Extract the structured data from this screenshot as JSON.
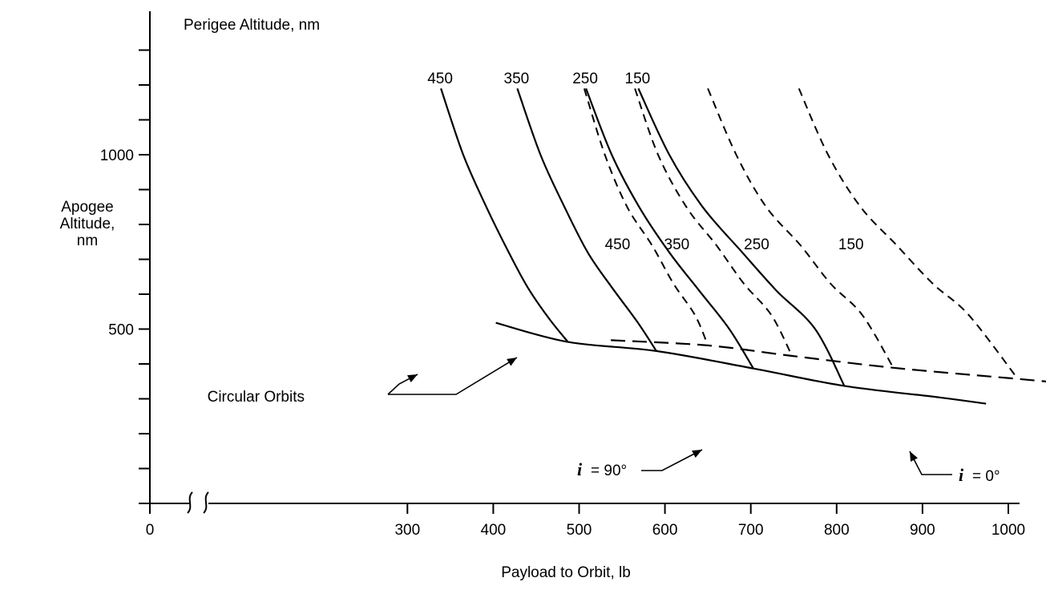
{
  "chart_data": {
    "type": "line",
    "title": "",
    "xlabel": "Payload to Orbit, lb",
    "ylabel": "Apogee Altitude, nm",
    "ylabel_lines": [
      "Apogee",
      "Altitude,",
      "nm"
    ],
    "xlim": [
      0,
      1000
    ],
    "ylim": [
      0,
      1200
    ],
    "x_axis_break_between": [
      0,
      300
    ],
    "x_ticks": [
      0,
      300,
      400,
      500,
      600,
      700,
      800,
      900,
      1000
    ],
    "x_tick_labels": [
      "0",
      "300",
      "400",
      "500",
      "600",
      "700",
      "800",
      "900",
      "1000"
    ],
    "y_ticks": [
      100,
      200,
      300,
      400,
      500,
      600,
      700,
      800,
      900,
      1000,
      1100,
      1200,
      1300
    ],
    "y_tick_labels": [
      {
        "value": 500,
        "label": "500"
      },
      {
        "value": 1000,
        "label": "1000"
      }
    ],
    "grid": false,
    "perigee_header": "Perigee Altitude, nm",
    "series": [
      {
        "name": "450",
        "group": "i = 90°",
        "style": "solid",
        "label_pos": "top",
        "points": [
          [
            339,
            1190
          ],
          [
            365,
            1000
          ],
          [
            392,
            850
          ],
          [
            418,
            720
          ],
          [
            440,
            620
          ],
          [
            465,
            530
          ],
          [
            487,
            463
          ]
        ]
      },
      {
        "name": "350",
        "group": "i = 90°",
        "style": "solid",
        "label_pos": "top",
        "points": [
          [
            428,
            1190
          ],
          [
            455,
            1000
          ],
          [
            483,
            850
          ],
          [
            510,
            720
          ],
          [
            538,
            620
          ],
          [
            568,
            520
          ],
          [
            590,
            437
          ]
        ]
      },
      {
        "name": "250",
        "group": "i = 90°",
        "style": "solid",
        "label_pos": "top",
        "points": [
          [
            508,
            1190
          ],
          [
            538,
            1000
          ],
          [
            570,
            850
          ],
          [
            605,
            720
          ],
          [
            640,
            610
          ],
          [
            675,
            500
          ],
          [
            703,
            387
          ]
        ]
      },
      {
        "name": "150",
        "group": "i = 90°",
        "style": "solid",
        "label_pos": "top",
        "points": [
          [
            569,
            1190
          ],
          [
            605,
            1000
          ],
          [
            644,
            850
          ],
          [
            690,
            720
          ],
          [
            730,
            610
          ],
          [
            775,
            500
          ],
          [
            809,
            337
          ]
        ]
      },
      {
        "name": "450",
        "group": "i = 0°",
        "style": "dashed",
        "label_pos": "mid",
        "points": [
          [
            506,
            1190
          ],
          [
            530,
            1000
          ],
          [
            556,
            850
          ],
          [
            585,
            740
          ],
          [
            610,
            630
          ],
          [
            635,
            540
          ],
          [
            650,
            453
          ]
        ]
      },
      {
        "name": "350",
        "group": "i = 0°",
        "style": "dashed",
        "label_pos": "mid",
        "points": [
          [
            565,
            1190
          ],
          [
            592,
            1000
          ],
          [
            625,
            850
          ],
          [
            660,
            740
          ],
          [
            692,
            630
          ],
          [
            724,
            540
          ],
          [
            748,
            423
          ]
        ]
      },
      {
        "name": "250",
        "group": "i = 0°",
        "style": "dashed",
        "label_pos": "mid",
        "points": [
          [
            650,
            1190
          ],
          [
            683,
            1000
          ],
          [
            718,
            850
          ],
          [
            758,
            740
          ],
          [
            793,
            630
          ],
          [
            830,
            540
          ],
          [
            866,
            389
          ]
        ]
      },
      {
        "name": "150",
        "group": "i = 0°",
        "style": "dashed",
        "label_pos": "mid",
        "points": [
          [
            756,
            1190
          ],
          [
            790,
            1000
          ],
          [
            828,
            850
          ],
          [
            870,
            740
          ],
          [
            912,
            630
          ],
          [
            954,
            540
          ],
          [
            1011,
            357
          ]
        ]
      }
    ],
    "envelopes": [
      {
        "name": "Circular Orbits, i = 90°",
        "style": "solid",
        "points": [
          [
            403,
            518
          ],
          [
            487,
            463
          ],
          [
            590,
            437
          ],
          [
            703,
            387
          ],
          [
            809,
            337
          ],
          [
            920,
            304
          ],
          [
            974,
            286
          ]
        ]
      },
      {
        "name": "Circular Orbits, i = 0°",
        "style": "long-dash",
        "points": [
          [
            537,
            468
          ],
          [
            650,
            453
          ],
          [
            748,
            423
          ],
          [
            866,
            389
          ],
          [
            1011,
            357
          ],
          [
            1070,
            344
          ]
        ]
      }
    ],
    "annotations": {
      "circular_orbits": "Circular Orbits",
      "incl_90_symbol": "i",
      "incl_90_value": "= 90°",
      "incl_0_symbol": "i",
      "incl_0_value": "= 0°"
    }
  }
}
